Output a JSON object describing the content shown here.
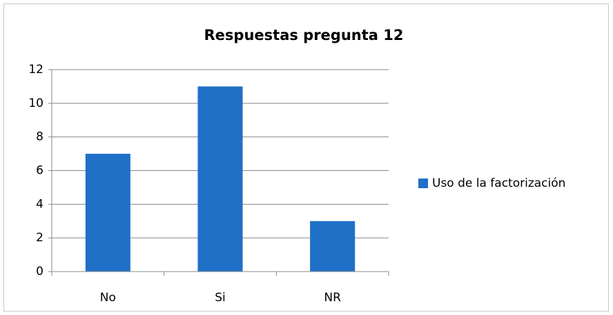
{
  "chart_data": {
    "type": "bar",
    "title": "Respuestas pregunta 12",
    "categories": [
      "No",
      "Si",
      "NR"
    ],
    "series": [
      {
        "name": "Uso de la factorización",
        "color": "#1f70c6",
        "values": [
          7,
          11,
          3
        ]
      }
    ],
    "ylim": [
      0,
      12
    ],
    "yticks": [
      0,
      2,
      4,
      6,
      8,
      10,
      12
    ],
    "grid": true,
    "legend": "right"
  }
}
